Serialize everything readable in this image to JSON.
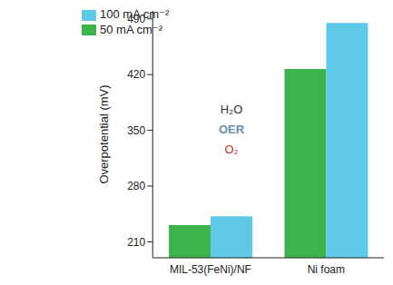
{
  "chart_data": {
    "type": "bar",
    "y_label": "Overpotential (mV)",
    "categories": [
      "MIL-53(FeNi)/NF",
      "Ni foam"
    ],
    "series": [
      {
        "name": "50 mA cm⁻²",
        "color": "#3cb44b",
        "values": [
          231,
          427
        ]
      },
      {
        "name": "100 mA cm⁻²",
        "color": "#5fc9e8",
        "values": [
          242,
          485
        ]
      }
    ],
    "ylim": [
      190,
      500
    ],
    "yticks": [
      210,
      280,
      350,
      420,
      490
    ],
    "legend": "upper left",
    "annotations": [
      "H₂O",
      "OER",
      "O₂"
    ]
  }
}
